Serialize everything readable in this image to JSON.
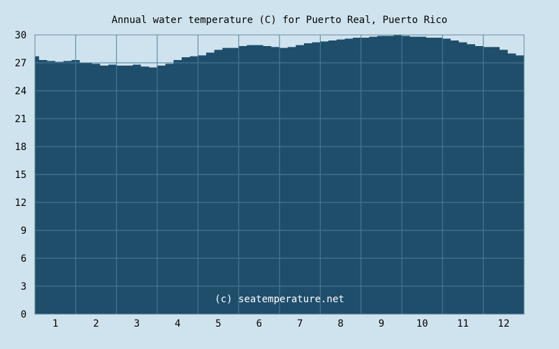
{
  "chart_data": {
    "type": "area",
    "title": "Annual water temperature (C) for Puerto Real, Puerto Rico",
    "xlabel": "",
    "ylabel": "",
    "watermark": "(c) seatemperature.net",
    "categories": [
      "1",
      "2",
      "3",
      "4",
      "5",
      "6",
      "7",
      "8",
      "9",
      "10",
      "11",
      "12"
    ],
    "yticks": [
      "0",
      "3",
      "6",
      "9",
      "12",
      "15",
      "18",
      "21",
      "24",
      "27",
      "30"
    ],
    "ylim": [
      0,
      30
    ],
    "xlim": [
      0,
      12
    ],
    "grid": true,
    "series": [
      {
        "x": [
          0.0,
          0.1,
          0.3,
          0.5,
          0.7,
          0.9,
          1.1,
          1.4,
          1.6,
          1.8,
          2.0,
          2.2,
          2.4,
          2.6,
          2.8,
          3.0,
          3.2,
          3.4,
          3.6,
          3.8,
          4.0,
          4.2,
          4.4,
          4.6,
          4.8,
          5.0,
          5.2,
          5.4,
          5.6,
          5.8,
          6.0,
          6.2,
          6.4,
          6.6,
          6.8,
          7.0,
          7.2,
          7.4,
          7.6,
          7.8,
          8.0,
          8.2,
          8.4,
          8.6,
          8.8,
          9.0,
          9.2,
          9.4,
          9.6,
          9.8,
          10.0,
          10.2,
          10.4,
          10.6,
          10.8,
          11.0,
          11.2,
          11.4,
          11.6,
          11.8,
          12.0
        ],
        "values": [
          27.7,
          27.3,
          27.2,
          27.1,
          27.2,
          27.3,
          27.0,
          26.9,
          26.7,
          26.8,
          26.7,
          26.7,
          26.8,
          26.6,
          26.5,
          26.7,
          26.9,
          27.3,
          27.6,
          27.7,
          27.8,
          28.1,
          28.4,
          28.6,
          28.6,
          28.8,
          28.9,
          28.9,
          28.8,
          28.7,
          28.6,
          28.7,
          28.9,
          29.1,
          29.2,
          29.3,
          29.4,
          29.5,
          29.6,
          29.7,
          29.7,
          29.8,
          29.9,
          29.9,
          30.0,
          29.9,
          29.8,
          29.8,
          29.7,
          29.7,
          29.6,
          29.4,
          29.2,
          29.0,
          28.8,
          28.7,
          28.7,
          28.4,
          28.0,
          27.8,
          27.8
        ],
        "color": "#1f4e6b"
      }
    ],
    "colors": {
      "background": "#cfe3ef",
      "fill": "#1f4e6b",
      "grid": "#4a7f99",
      "axis": "#6a8a9e"
    }
  }
}
